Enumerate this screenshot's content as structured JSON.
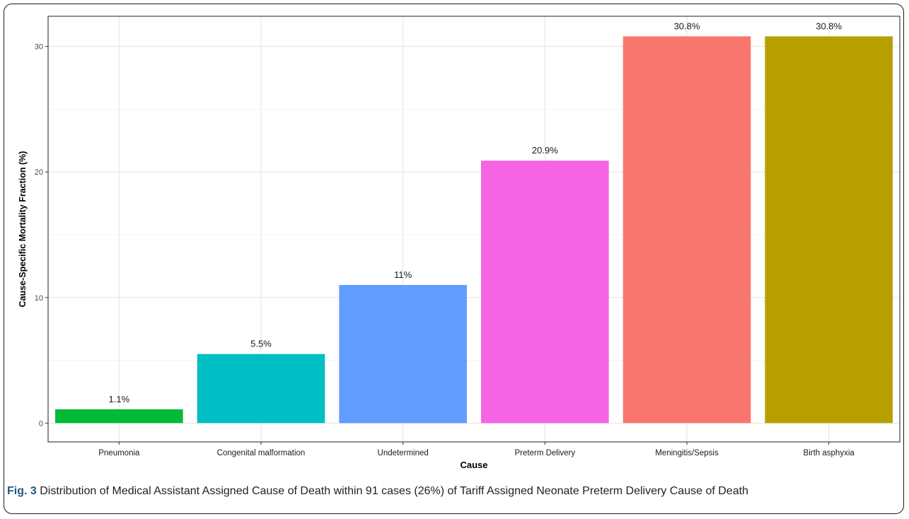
{
  "chart_data": {
    "type": "bar",
    "categories": [
      "Pneumonia",
      "Congenital malformation",
      "Undetermined",
      "Preterm Delivery",
      "Meningitis/Sepsis",
      "Birth asphyxia"
    ],
    "values": [
      1.1,
      5.5,
      11,
      20.9,
      30.8,
      30.8
    ],
    "data_labels": [
      "1.1%",
      "5.5%",
      "11%",
      "20.9%",
      "30.8%",
      "30.8%"
    ],
    "colors": [
      "#00BA38",
      "#00BFC4",
      "#619CFF",
      "#F564E3",
      "#F8766D",
      "#B79F00"
    ],
    "xlabel": "Cause",
    "ylabel": "Cause-Specific Mortality Fraction (%)",
    "ylim": [
      -1.5,
      32.4
    ],
    "yticks": [
      0,
      10,
      20,
      30
    ],
    "ytick_labels": [
      "0",
      "10",
      "20",
      "30"
    ],
    "grid": true,
    "legend": "none"
  },
  "caption": {
    "label": "Fig. 3",
    "text": "Distribution of Medical Assistant Assigned Cause of Death within 91 cases (26%) of Tariff Assigned Neonate Preterm Delivery Cause of Death"
  }
}
